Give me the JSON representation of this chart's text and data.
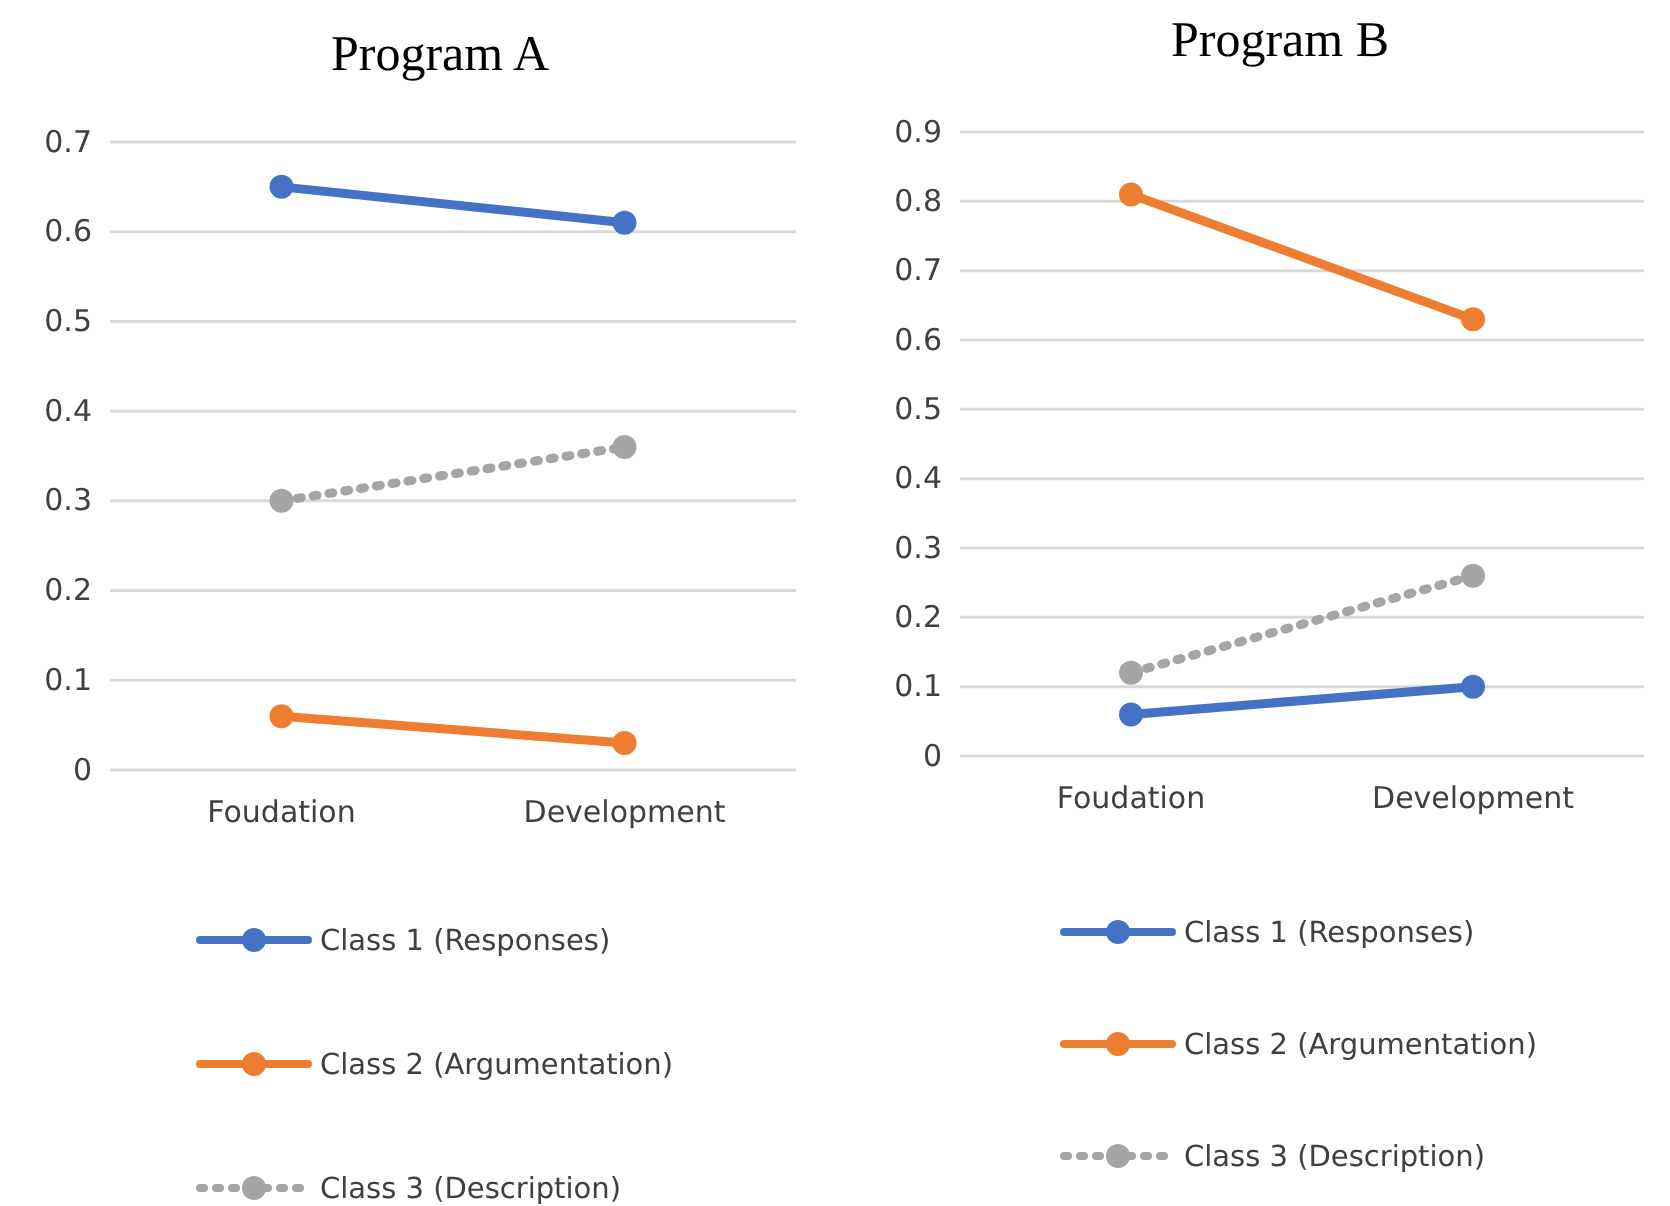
{
  "chart_data": [
    {
      "type": "line",
      "title": "Program A",
      "categories": [
        "Foudation",
        "Development"
      ],
      "ylim": [
        0,
        0.7
      ],
      "yticks": [
        0,
        0.1,
        0.2,
        0.3,
        0.4,
        0.5,
        0.6,
        0.7
      ],
      "grid": "y",
      "legend": "bottom",
      "marker": "circle",
      "series": [
        {
          "name": "Class 1 (Responses)",
          "color": "#4472c4",
          "values": [
            0.65,
            0.61
          ]
        },
        {
          "name": "Class 2 (Argumentation)",
          "color": "#ed7d31",
          "values": [
            0.06,
            0.03
          ]
        },
        {
          "name": "Class 3 (Description)",
          "color": "#a5a5a5",
          "values": [
            0.3,
            0.36
          ],
          "line_style": "dotted"
        }
      ]
    },
    {
      "type": "line",
      "title": "Program B",
      "categories": [
        "Foudation",
        "Development"
      ],
      "ylim": [
        0,
        0.9
      ],
      "yticks": [
        0,
        0.1,
        0.2,
        0.3,
        0.4,
        0.5,
        0.6,
        0.7,
        0.8,
        0.9
      ],
      "grid": "y",
      "legend": "bottom",
      "marker": "circle",
      "series": [
        {
          "name": "Class 1 (Responses)",
          "color": "#4472c4",
          "values": [
            0.06,
            0.1
          ]
        },
        {
          "name": "Class 2 (Argumentation)",
          "color": "#ed7d31",
          "values": [
            0.81,
            0.63
          ]
        },
        {
          "name": "Class 3 (Description)",
          "color": "#a5a5a5",
          "values": [
            0.12,
            0.26
          ],
          "line_style": "dotted"
        }
      ]
    }
  ]
}
